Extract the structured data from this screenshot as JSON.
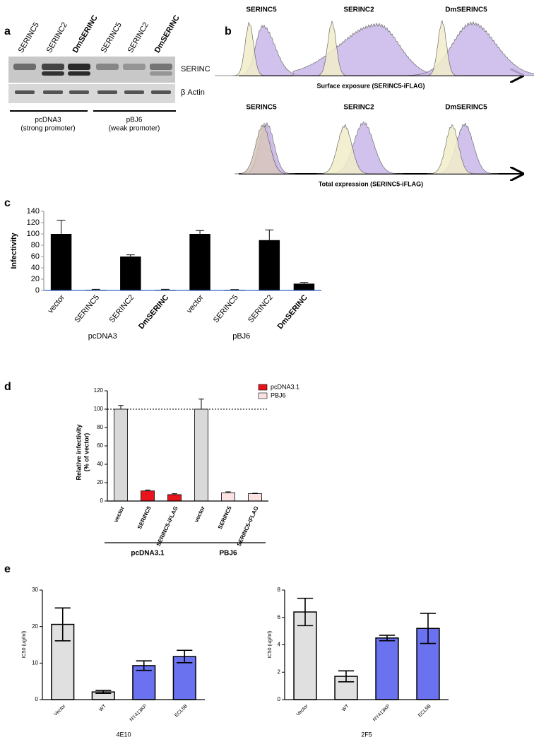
{
  "panel_labels": [
    "a",
    "b",
    "c",
    "d",
    "e"
  ],
  "blot": {
    "lane_labels": [
      "SERINC5",
      "SERINC2",
      "DmSERINC",
      "SERINC5",
      "SERINC2",
      "DmSERINC"
    ],
    "row_labels": [
      "SERINC",
      "β Actin"
    ],
    "groups": [
      {
        "name": "pcDNA3",
        "note": "(strong promoter)"
      },
      {
        "name": "pBJ6",
        "note": "(weak promoter)"
      }
    ]
  },
  "flow": {
    "rows": [
      {
        "titles": [
          "SERINC5",
          "SERINC2",
          "DmSERINC5"
        ],
        "axis_label": "Surface exposure (SERINC5-iFLAG)"
      },
      {
        "titles": [
          "SERINC5",
          "SERINC2",
          "DmSERINC5"
        ],
        "axis_label": "Total expression (SERINC5-iFLAG)"
      }
    ]
  },
  "chart_data": [
    {
      "type": "bar",
      "ylabel": "Infectivity",
      "categories": [
        "vector",
        "SERINC5",
        "SERINC2",
        "DmSERINC",
        "vector",
        "SERINC5",
        "SERINC2",
        "DmSERINC"
      ],
      "values": [
        100,
        1,
        60,
        1,
        100,
        1,
        89,
        12
      ],
      "errors": [
        24,
        1,
        3,
        1,
        6,
        0.5,
        18,
        2
      ],
      "color": "#000000",
      "ylim": [
        0,
        140
      ],
      "yticks": [
        0,
        20,
        40,
        60,
        80,
        100,
        120,
        140
      ],
      "groups": [
        "pcDNA3",
        "pBJ6"
      ]
    },
    {
      "type": "bar",
      "ylabel": [
        "Relative infectivity",
        "(% of vector)"
      ],
      "categories": [
        "vector",
        "SERINC5",
        "SERINC5-iFLAG",
        "vector",
        "SERINC5",
        "SERINC5-iFLAG"
      ],
      "values": [
        100,
        11,
        7,
        100,
        9,
        8
      ],
      "errors": [
        4,
        1,
        1,
        11,
        1,
        0.5
      ],
      "colors": [
        "#d9d9d9",
        "#e8141b",
        "#e8141b",
        "#d9d9d9",
        "#fbe3e3",
        "#fbe3e3"
      ],
      "legend": [
        {
          "name": "pcDNA3.1",
          "color": "#e8141b"
        },
        {
          "name": "PBJ6",
          "color": "#fbe3e3"
        }
      ],
      "reference_line": 100,
      "ylim": [
        0,
        120
      ],
      "yticks": [
        0,
        20,
        40,
        60,
        80,
        100,
        120
      ],
      "groups": [
        "pcDNA3.1",
        "PBJ6"
      ]
    },
    {
      "type": "bar",
      "ylabel": "IC50 (ug/ml)",
      "xlabel": "4E10",
      "categories": [
        "Vector",
        "WT",
        "NY413KP",
        "ECL5B"
      ],
      "values": [
        20.6,
        2.1,
        9.3,
        11.8
      ],
      "errors": [
        4.5,
        0.4,
        1.3,
        1.7
      ],
      "colors": [
        "#e0e0e0",
        "#e0e0e0",
        "#6b72f0",
        "#6b72f0"
      ],
      "ylim": [
        0,
        30
      ],
      "yticks": [
        0,
        10,
        20,
        30
      ]
    },
    {
      "type": "bar",
      "ylabel": "IC50 (ug/ml)",
      "xlabel": "2F5",
      "categories": [
        "Vector",
        "WT",
        "NY413KP",
        "ECL5B"
      ],
      "values": [
        6.4,
        1.7,
        4.5,
        5.2
      ],
      "errors": [
        1.0,
        0.4,
        0.2,
        1.1
      ],
      "colors": [
        "#e0e0e0",
        "#e0e0e0",
        "#6b72f0",
        "#6b72f0"
      ],
      "ylim": [
        0,
        8
      ],
      "yticks": [
        0,
        2,
        4,
        6,
        8
      ]
    }
  ]
}
